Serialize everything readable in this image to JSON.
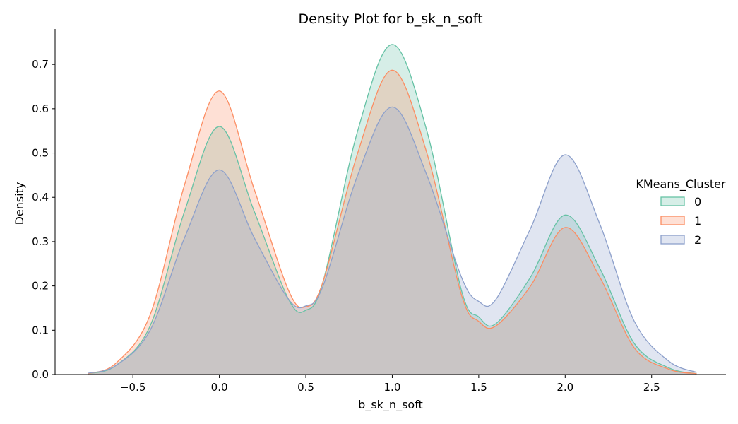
{
  "chart_data": {
    "type": "area",
    "title": "Density Plot for b_sk_n_soft",
    "xlabel": "b_sk_n_soft",
    "ylabel": "Density",
    "xlim": [
      -0.95,
      2.93
    ],
    "ylim": [
      0,
      0.78
    ],
    "x_ticks": [
      -0.5,
      0.0,
      0.5,
      1.0,
      1.5,
      2.0,
      2.5
    ],
    "x_tick_labels": [
      "−0.5",
      "0.0",
      "0.5",
      "1.0",
      "1.5",
      "2.0",
      "2.5"
    ],
    "y_ticks": [
      0.0,
      0.1,
      0.2,
      0.3,
      0.4,
      0.5,
      0.6,
      0.7
    ],
    "y_tick_labels": [
      "0.0",
      "0.1",
      "0.2",
      "0.3",
      "0.4",
      "0.5",
      "0.6",
      "0.7"
    ],
    "grid": false,
    "legend": {
      "title": "KMeans_Cluster",
      "placement": "right"
    },
    "x": [
      -0.76,
      -0.6,
      -0.4,
      -0.2,
      0.0,
      0.2,
      0.4,
      0.5,
      0.6,
      0.8,
      1.0,
      1.2,
      1.4,
      1.5,
      1.6,
      1.8,
      2.0,
      2.2,
      2.4,
      2.6,
      2.76
    ],
    "series": [
      {
        "name": "0",
        "color": "#66c2a5",
        "values": [
          0.002,
          0.02,
          0.11,
          0.37,
          0.56,
          0.37,
          0.17,
          0.145,
          0.21,
          0.55,
          0.745,
          0.55,
          0.19,
          0.13,
          0.115,
          0.22,
          0.36,
          0.24,
          0.07,
          0.015,
          0.002
        ]
      },
      {
        "name": "1",
        "color": "#fc8d62",
        "values": [
          0.002,
          0.025,
          0.135,
          0.43,
          0.64,
          0.42,
          0.19,
          0.153,
          0.21,
          0.5,
          0.687,
          0.5,
          0.18,
          0.12,
          0.11,
          0.2,
          0.332,
          0.22,
          0.06,
          0.012,
          0.002
        ]
      },
      {
        "name": "2",
        "color": "#8da0cb",
        "values": [
          0.003,
          0.02,
          0.1,
          0.31,
          0.462,
          0.31,
          0.17,
          0.155,
          0.2,
          0.45,
          0.604,
          0.45,
          0.22,
          0.165,
          0.17,
          0.33,
          0.496,
          0.34,
          0.12,
          0.03,
          0.005
        ]
      }
    ]
  }
}
